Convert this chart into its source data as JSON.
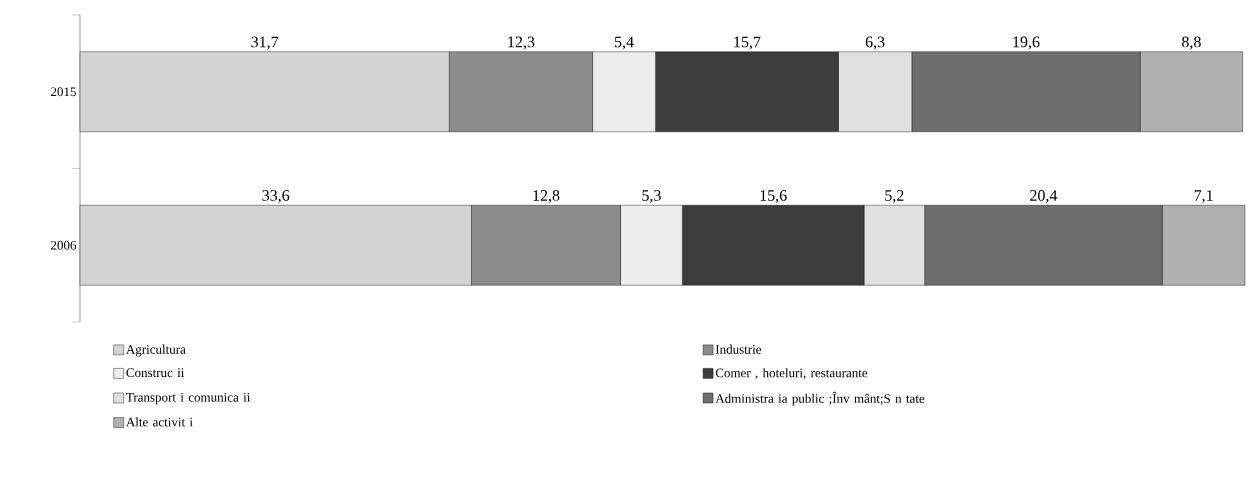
{
  "chart_data": {
    "type": "bar",
    "orientation": "horizontal",
    "stacked": true,
    "legend": "bottom",
    "categories": [
      "2015",
      "2006"
    ],
    "series": [
      {
        "name": "Agricultura",
        "color": "#d4d4d4",
        "values": [
          31.7,
          33.6
        ],
        "value_labels": [
          "31,7",
          "33,6"
        ]
      },
      {
        "name": "Industrie",
        "color": "#8c8c8c",
        "values": [
          12.3,
          12.8
        ],
        "value_labels": [
          "12,3",
          "12,8"
        ]
      },
      {
        "name": "Construc ii",
        "color": "#ededed",
        "values": [
          5.4,
          5.3
        ],
        "value_labels": [
          "5,4",
          "5,3"
        ]
      },
      {
        "name": "Comer , hoteluri, restaurante",
        "color": "#3c3c3c",
        "values": [
          15.7,
          15.6
        ],
        "value_labels": [
          "15,7",
          "15,6"
        ]
      },
      {
        "name": "Transport  i comunica ii",
        "color": "#e0e0e0",
        "values": [
          6.3,
          5.2
        ],
        "value_labels": [
          "6,3",
          "5,2"
        ]
      },
      {
        "name": "Administra ia public ;Înv   mânt;S n tate",
        "color": "#6e6e6e",
        "values": [
          19.6,
          20.4
        ],
        "value_labels": [
          "19,6",
          "20,4"
        ]
      },
      {
        "name": "Alte activit  i",
        "color": "#b0b0b0",
        "values": [
          8.8,
          7.1
        ],
        "value_labels": [
          "8,8",
          "7,1"
        ]
      }
    ]
  }
}
